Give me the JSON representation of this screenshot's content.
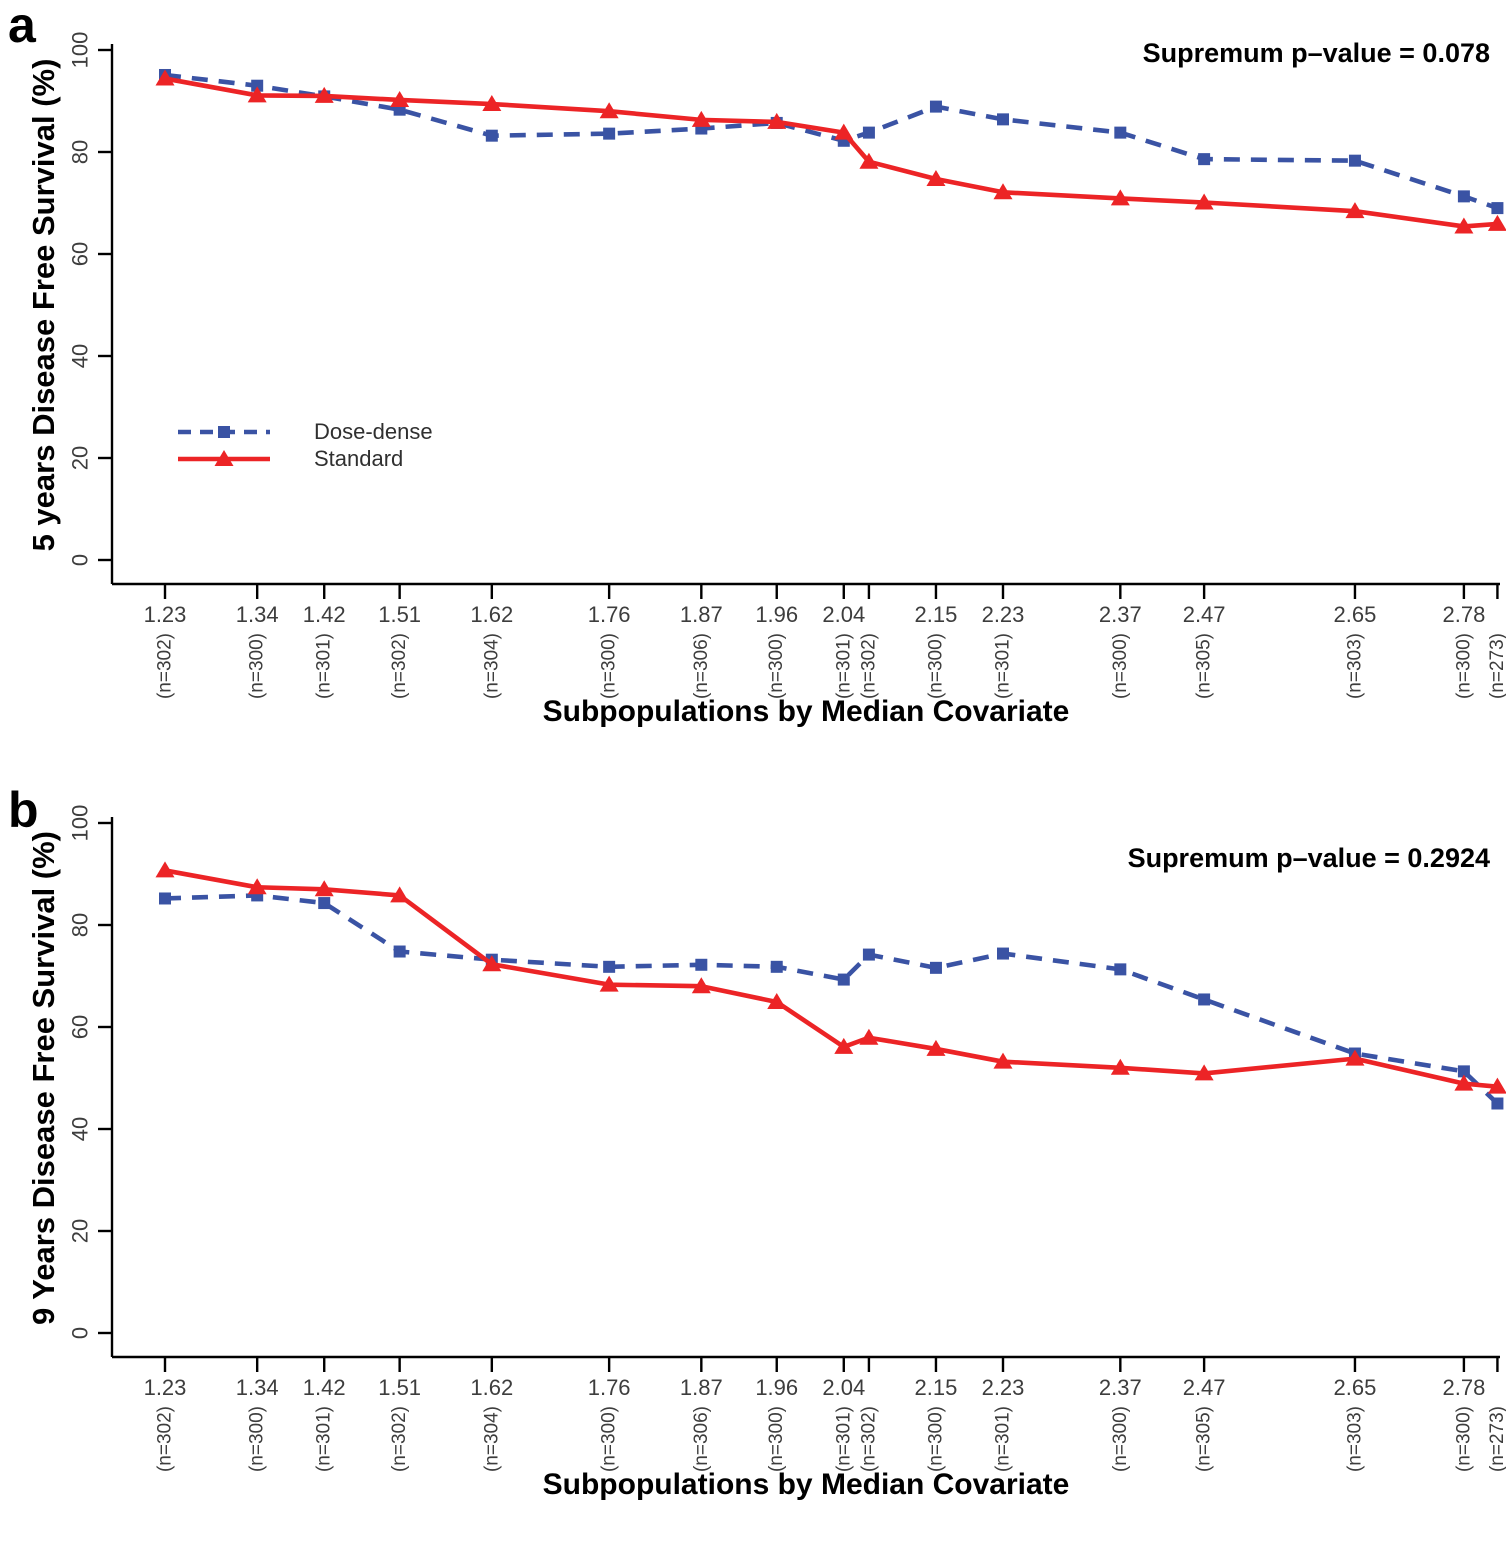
{
  "figure": {
    "background": "#ffffff",
    "axis_color": "#000000",
    "tick_label_color": "#3d3d3d"
  },
  "chart_data": [
    {
      "type": "line",
      "panel_label": "a",
      "annotation": "Supremum p–value = 0.078",
      "xlabel": "Subpopulations by Median Covariate",
      "ylabel": "5 years Disease Free Survival (%)",
      "ylim": [
        0,
        100
      ],
      "y_ticks": [
        0,
        20,
        40,
        60,
        80,
        100
      ],
      "grid": "off",
      "x": [
        1.23,
        1.34,
        1.42,
        1.51,
        1.62,
        1.76,
        1.87,
        1.96,
        2.04,
        2.07,
        2.15,
        2.23,
        2.37,
        2.47,
        2.65,
        2.78,
        2.82
      ],
      "x_tick_labels": [
        "1.23",
        "1.34",
        "1.42",
        "1.51",
        "1.62",
        "1.76",
        "1.87",
        "1.96",
        "2.04",
        "",
        "2.15",
        "2.23",
        "2.37",
        "2.47",
        "2.65",
        "2.78",
        ""
      ],
      "n_labels": [
        "(n=302)",
        "(n=300)",
        "(n=301)",
        "(n=302)",
        "(n=304)",
        "(n=300)",
        "(n=306)",
        "(n=300)",
        "(n=301)",
        "(n=302)",
        "(n=300)",
        "(n=301)",
        "(n=300)",
        "(n=305)",
        "(n=303)",
        "(n=300)",
        "(n=273)"
      ],
      "series": [
        {
          "name": "Dose-dense",
          "color": "#3A53A4",
          "line_style": "dashed",
          "marker": "square",
          "values": [
            95.1,
            93.0,
            90.9,
            88.3,
            83.2,
            83.6,
            84.6,
            85.7,
            82.2,
            83.8,
            88.9,
            86.4,
            83.8,
            78.6,
            78.3,
            71.3,
            69.0
          ]
        },
        {
          "name": "Standard",
          "color": "#EC2426",
          "line_style": "solid",
          "marker": "triangle",
          "values": [
            94.4,
            91.1,
            91.0,
            90.2,
            89.4,
            88.0,
            86.3,
            85.9,
            83.8,
            78.1,
            74.7,
            72.1,
            70.9,
            70.1,
            68.4,
            65.4,
            65.9
          ]
        }
      ],
      "legend": {
        "visible": true,
        "position": "inside-left-middle"
      }
    },
    {
      "type": "line",
      "panel_label": "b",
      "annotation": "Supremum p–value = 0.2924",
      "xlabel": "Subpopulations by Median Covariate",
      "ylabel": "9 Years Disease Free Survival (%)",
      "ylim": [
        0,
        100
      ],
      "y_ticks": [
        0,
        20,
        40,
        60,
        80,
        100
      ],
      "grid": "off",
      "x": [
        1.23,
        1.34,
        1.42,
        1.51,
        1.62,
        1.76,
        1.87,
        1.96,
        2.04,
        2.07,
        2.15,
        2.23,
        2.37,
        2.47,
        2.65,
        2.78,
        2.82
      ],
      "x_tick_labels": [
        "1.23",
        "1.34",
        "1.42",
        "1.51",
        "1.62",
        "1.76",
        "1.87",
        "1.96",
        "2.04",
        "",
        "2.15",
        "2.23",
        "2.37",
        "2.47",
        "2.65",
        "2.78",
        ""
      ],
      "n_labels": [
        "(n=302)",
        "(n=300)",
        "(n=301)",
        "(n=302)",
        "(n=304)",
        "(n=300)",
        "(n=306)",
        "(n=300)",
        "(n=301)",
        "(n=302)",
        "(n=300)",
        "(n=301)",
        "(n=300)",
        "(n=305)",
        "(n=303)",
        "(n=300)",
        "(n=273)"
      ],
      "series": [
        {
          "name": "Dose-dense",
          "color": "#3A53A4",
          "line_style": "dashed",
          "marker": "square",
          "values": [
            85.2,
            85.8,
            84.3,
            74.8,
            73.2,
            71.8,
            72.2,
            71.8,
            69.3,
            74.2,
            71.6,
            74.4,
            71.3,
            65.4,
            54.8,
            51.3,
            45.0
          ]
        },
        {
          "name": "Standard",
          "color": "#EC2426",
          "line_style": "solid",
          "marker": "triangle",
          "values": [
            90.7,
            87.4,
            87.0,
            85.8,
            72.3,
            68.3,
            68.0,
            64.9,
            56.1,
            57.9,
            55.7,
            53.2,
            52.0,
            50.9,
            53.8,
            48.9,
            48.3
          ]
        }
      ],
      "legend": {
        "visible": false,
        "position": ""
      }
    }
  ]
}
